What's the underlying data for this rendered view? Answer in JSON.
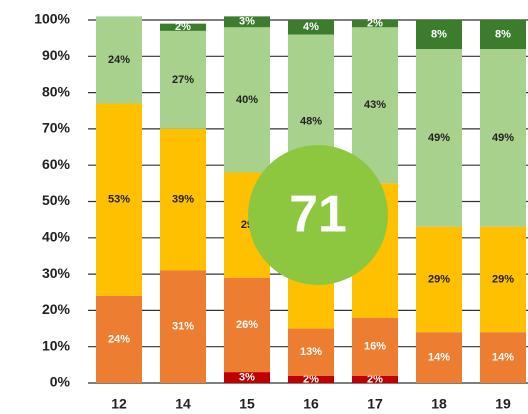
{
  "chart_data": {
    "type": "stacked-bar",
    "categories": [
      "12",
      "14",
      "15",
      "16",
      "17",
      "18",
      "19"
    ],
    "series": [
      {
        "color": "#c00000",
        "label_color": "#ffffff",
        "values": [
          0,
          0,
          3,
          2,
          2,
          0,
          0
        ],
        "value_labels": [
          null,
          null,
          "3%",
          "2%",
          "2%",
          null,
          null
        ]
      },
      {
        "color": "#ed7d31",
        "label_color": "#ffffff",
        "values": [
          24,
          31,
          26,
          13,
          16,
          14,
          14
        ],
        "value_labels": [
          "24%",
          "31%",
          "26%",
          "13%",
          "16%",
          "14%",
          "14%"
        ]
      },
      {
        "color": "#ffc000",
        "label_color": "#222222",
        "values": [
          53,
          39,
          29,
          33,
          37,
          29,
          29
        ],
        "value_labels": [
          "53%",
          "39%",
          "29",
          null,
          null,
          "29%",
          "29%"
        ]
      },
      {
        "color": "#a9d18e",
        "label_color": "#222222",
        "values": [
          24,
          27,
          40,
          48,
          43,
          49,
          49
        ],
        "value_labels": [
          "24%",
          "27%",
          "40%",
          "48%",
          "43%",
          "49%",
          "49%"
        ]
      },
      {
        "color": "#3b7d2d",
        "label_color": "#ffffff",
        "values": [
          0,
          2,
          3,
          4,
          2,
          8,
          8
        ],
        "value_labels": [
          null,
          "2%",
          "3%",
          "4%",
          "2%",
          "8%",
          "8%"
        ]
      }
    ],
    "ylim": [
      0,
      100
    ],
    "yticks": [
      {
        "value": 0,
        "label": "0%"
      },
      {
        "value": 10,
        "label": "10%"
      },
      {
        "value": 20,
        "label": "20%"
      },
      {
        "value": 30,
        "label": "30%"
      },
      {
        "value": 40,
        "label": "40%"
      },
      {
        "value": 50,
        "label": "50%"
      },
      {
        "value": 60,
        "label": "60%"
      },
      {
        "value": 70,
        "label": "70%"
      },
      {
        "value": 80,
        "label": "80%"
      },
      {
        "value": 90,
        "label": "90%"
      },
      {
        "value": 100,
        "label": "100%"
      }
    ],
    "grid": true,
    "annotation": "71"
  }
}
